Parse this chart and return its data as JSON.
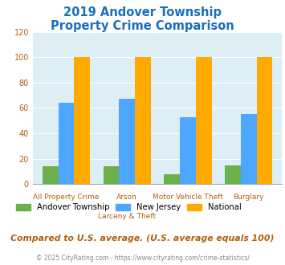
{
  "title_line1": "2019 Andover Township",
  "title_line2": "Property Crime Comparison",
  "title_color": "#1a6fbd",
  "cat_labels_line1": [
    "All Property Crime",
    "Arson",
    "Motor Vehicle Theft",
    "Burglary"
  ],
  "cat_labels_line2": [
    "",
    "Larceny & Theft",
    "",
    ""
  ],
  "andover": [
    14,
    14,
    8,
    15
  ],
  "nj": [
    64,
    67,
    53,
    55
  ],
  "national": [
    100,
    100,
    100,
    100
  ],
  "andover_color": "#6ab04c",
  "nj_color": "#4da6ff",
  "national_color": "#ffaa00",
  "ylim": [
    0,
    120
  ],
  "yticks": [
    0,
    20,
    40,
    60,
    80,
    100,
    120
  ],
  "background_color": "#ddeef5",
  "grid_color": "#ffffff",
  "footnote": "Compared to U.S. average. (U.S. average equals 100)",
  "copyright": "© 2025 CityRating.com - https://www.cityrating.com/crime-statistics/",
  "legend_labels": [
    "Andover Township",
    "New Jersey",
    "National"
  ],
  "xlabel_color": "#b06010",
  "ytick_color": "#b06010"
}
